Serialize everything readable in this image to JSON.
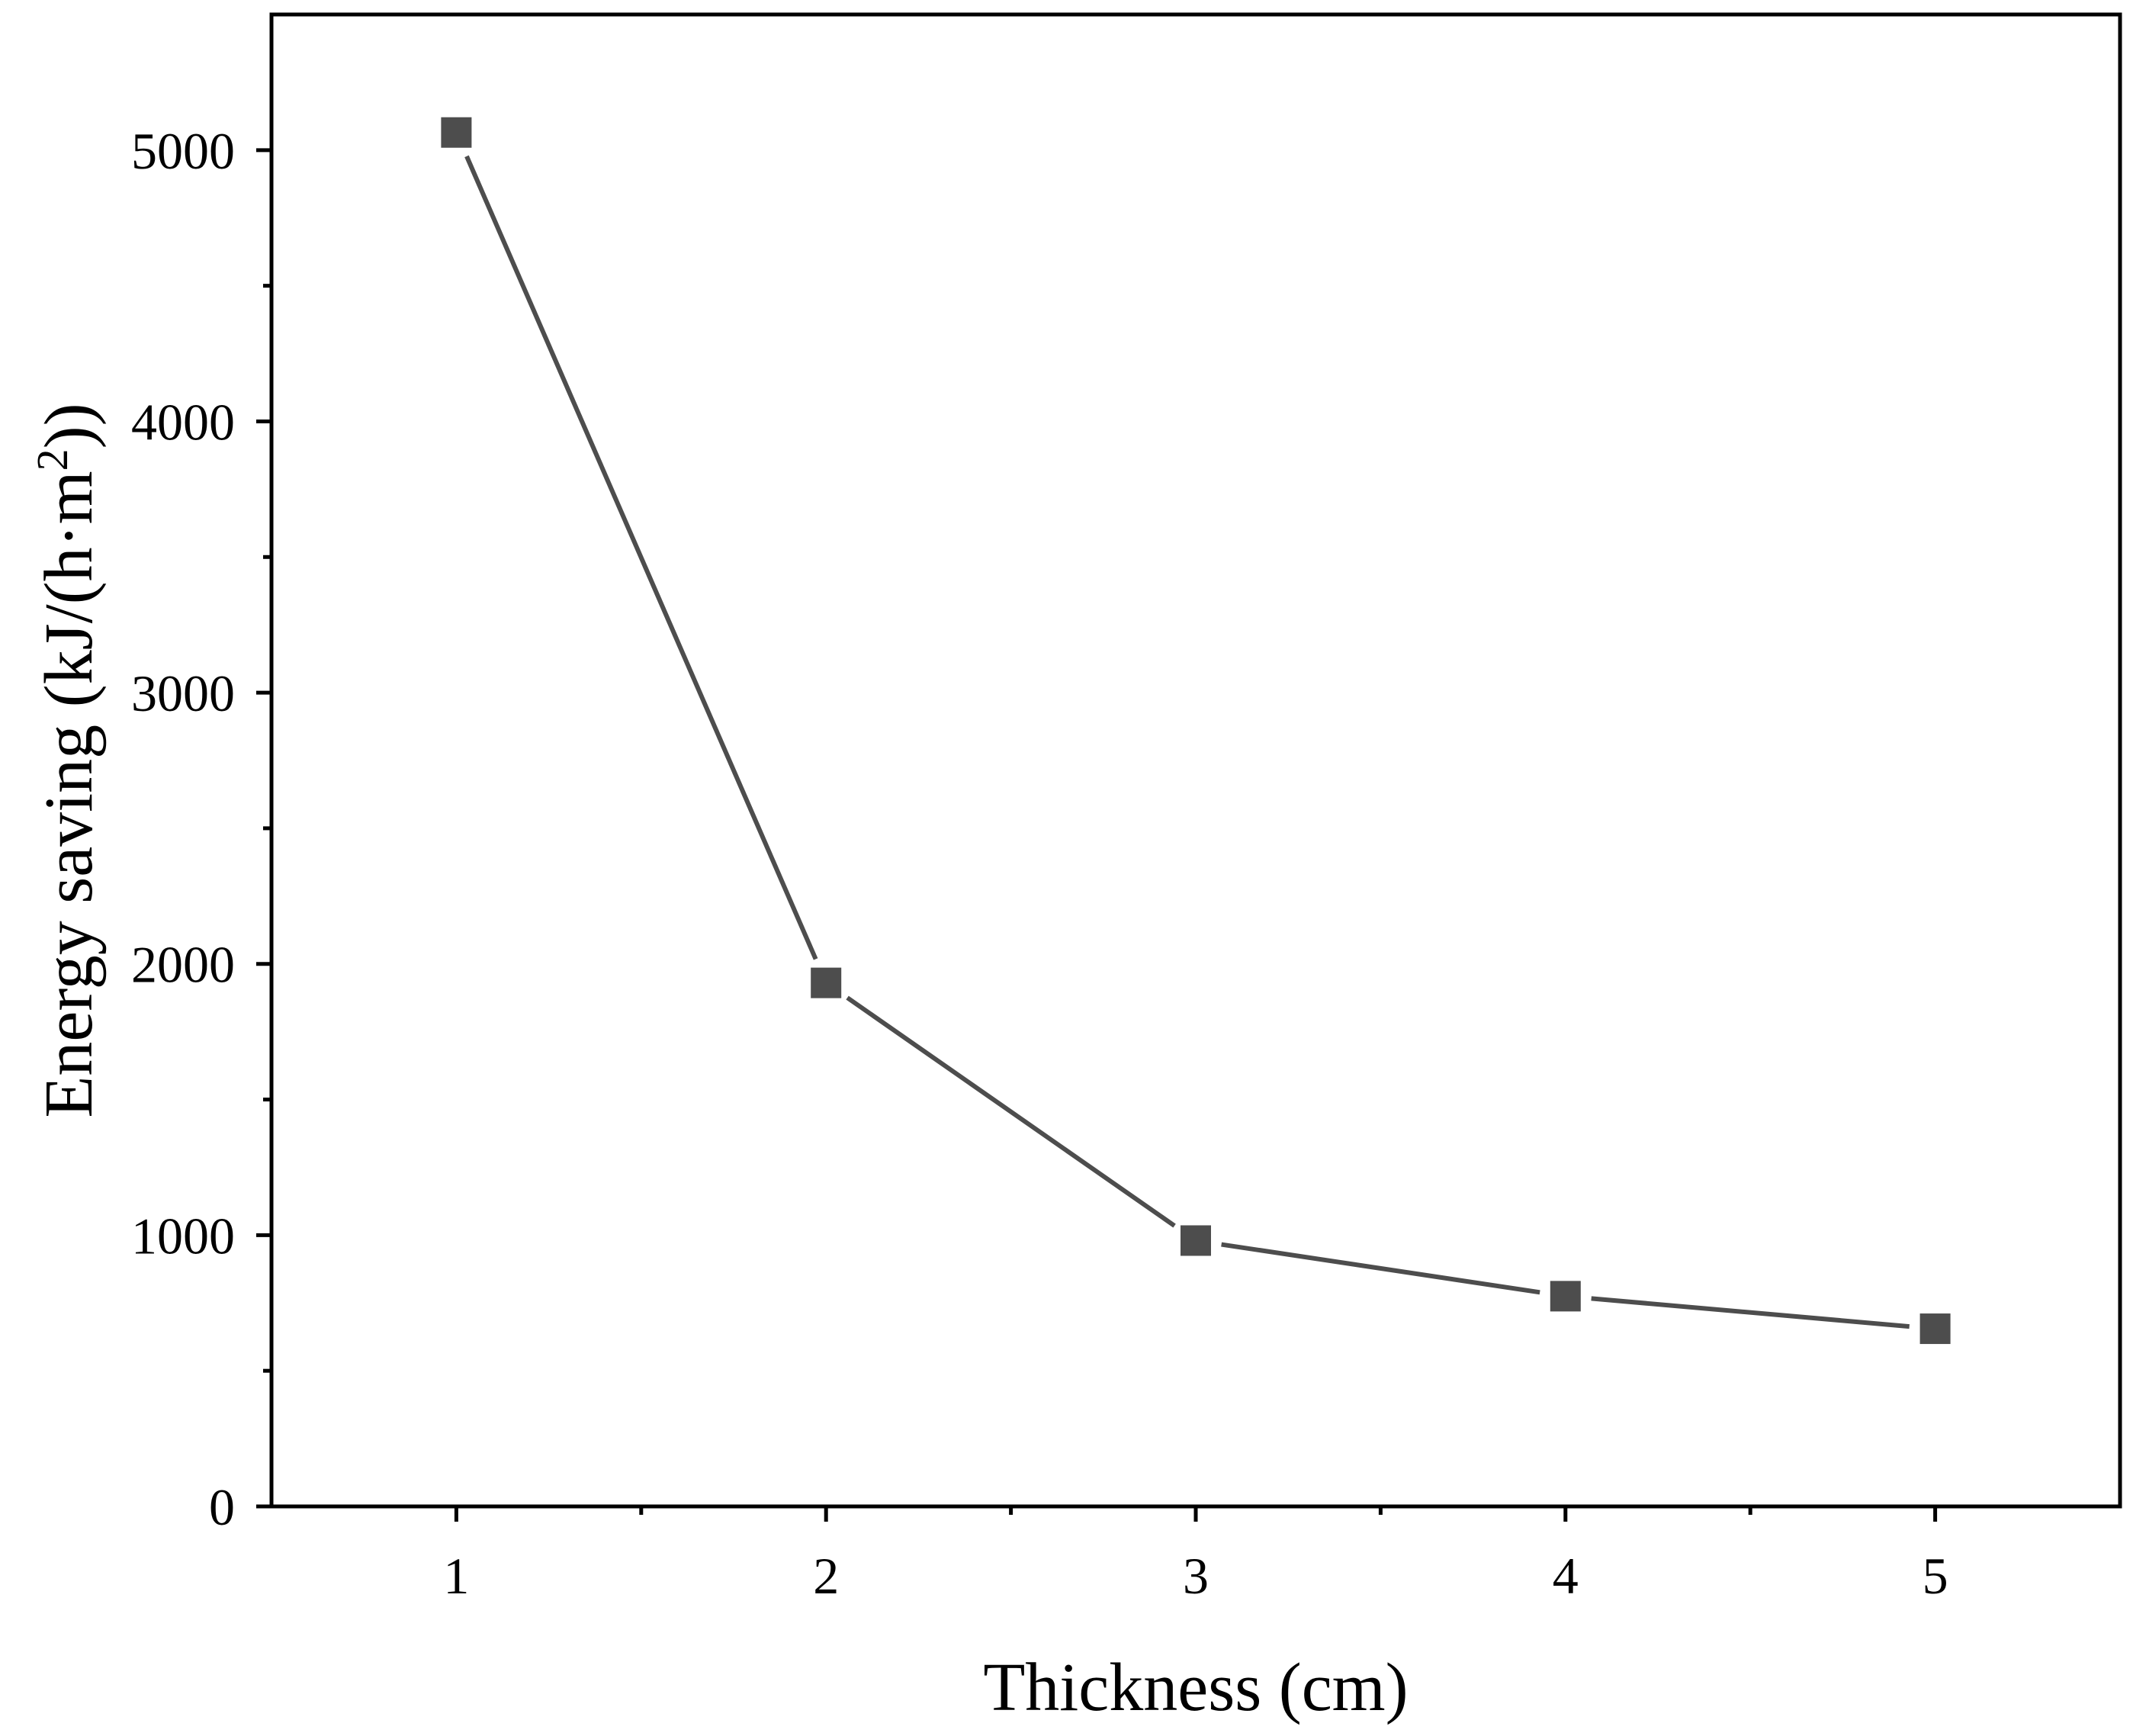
{
  "chart_data": {
    "type": "line",
    "title": "",
    "xlabel": "Thickness (cm)",
    "ylabel": {
      "prefix": "Energy saving (kJ/(h·m",
      "superscript": "2",
      "suffix": "))"
    },
    "x": [
      1,
      2,
      3,
      4,
      5
    ],
    "series": [
      {
        "name": "Energy saving",
        "values": [
          5065,
          1930,
          980,
          775,
          655
        ],
        "color": "#4d4d4d"
      }
    ],
    "xlim": [
      0.5,
      5.5
    ],
    "ylim": [
      0,
      5500
    ],
    "xticks": [
      "1",
      "2",
      "3",
      "4",
      "5"
    ],
    "yticks": [
      "0",
      "1000",
      "2000",
      "3000",
      "4000",
      "5000"
    ],
    "grid": false,
    "legend": "none"
  }
}
